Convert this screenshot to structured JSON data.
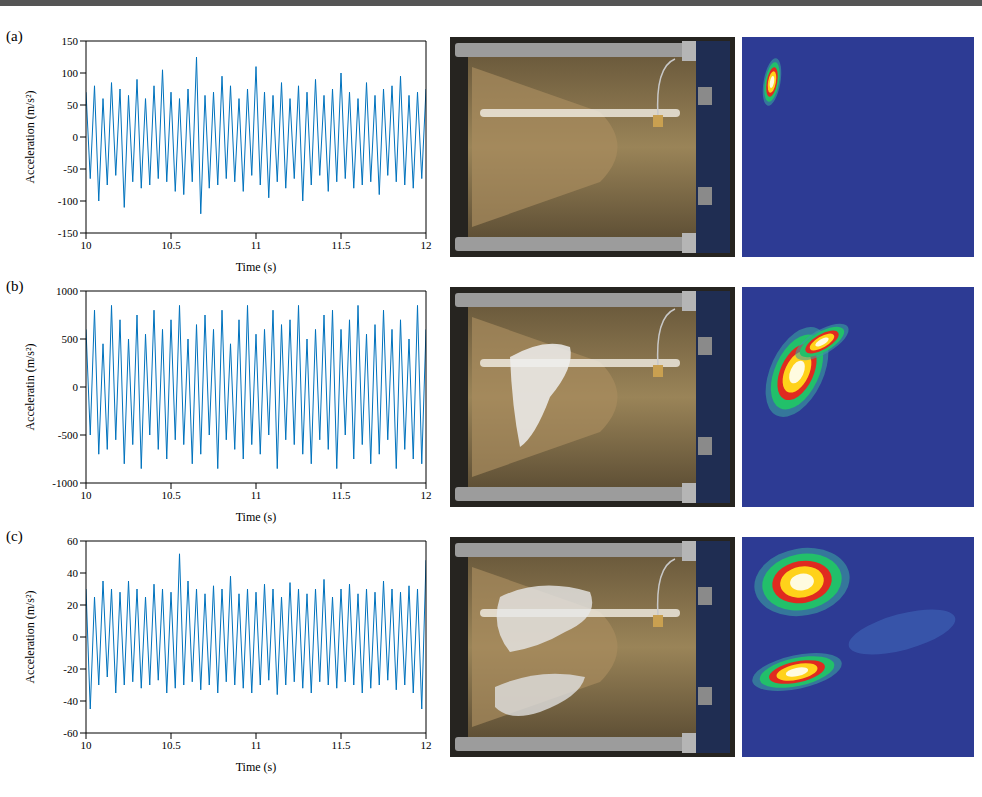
{
  "chart_data": [
    {
      "type": "line",
      "panel": "(a)",
      "x_label": "Time (s)",
      "y_label": "Acceleration (m/s²)",
      "xlim": [
        10,
        12
      ],
      "xticks": [
        10,
        10.5,
        11,
        11.5,
        12
      ],
      "ylim": [
        -150,
        150
      ],
      "yticks": [
        -150,
        -100,
        -50,
        0,
        50,
        100,
        150
      ],
      "grid": false,
      "color": "#0072bd",
      "x": [
        10,
        10.025,
        10.05,
        10.075,
        10.1,
        10.125,
        10.15,
        10.175,
        10.2,
        10.225,
        10.25,
        10.275,
        10.3,
        10.325,
        10.35,
        10.375,
        10.4,
        10.425,
        10.45,
        10.475,
        10.5,
        10.525,
        10.55,
        10.575,
        10.6,
        10.625,
        10.65,
        10.675,
        10.7,
        10.725,
        10.75,
        10.775,
        10.8,
        10.825,
        10.85,
        10.875,
        10.9,
        10.925,
        10.95,
        10.975,
        11,
        11.025,
        11.05,
        11.075,
        11.1,
        11.125,
        11.15,
        11.175,
        11.2,
        11.225,
        11.25,
        11.275,
        11.3,
        11.325,
        11.35,
        11.375,
        11.4,
        11.425,
        11.45,
        11.475,
        11.5,
        11.525,
        11.55,
        11.575,
        11.6,
        11.625,
        11.65,
        11.675,
        11.7,
        11.725,
        11.75,
        11.775,
        11.8,
        11.825,
        11.85,
        11.875,
        11.9,
        11.925,
        11.95,
        11.975,
        12
      ],
      "values": [
        70,
        -65,
        80,
        -100,
        60,
        -75,
        85,
        -60,
        75,
        -110,
        65,
        -70,
        90,
        -80,
        60,
        -75,
        80,
        -65,
        105,
        -70,
        70,
        -85,
        60,
        -90,
        75,
        -70,
        125,
        -120,
        65,
        -80,
        70,
        -75,
        95,
        -65,
        80,
        -70,
        60,
        -85,
        75,
        -60,
        110,
        -75,
        70,
        -95,
        65,
        -70,
        85,
        -80,
        60,
        -65,
        80,
        -100,
        70,
        -75,
        90,
        -60,
        65,
        -85,
        75,
        -70,
        100,
        -65,
        70,
        -80,
        60,
        -75,
        85,
        -70,
        65,
        -90,
        75,
        -60,
        80,
        -70,
        95,
        -75,
        65,
        -80,
        70,
        -65,
        75
      ]
    },
    {
      "type": "line",
      "panel": "(b)",
      "x_label": "Time (s)",
      "y_label": "Acceleratin (m/s²)",
      "xlim": [
        10,
        12
      ],
      "xticks": [
        10,
        10.5,
        11,
        11.5,
        12
      ],
      "ylim": [
        -1000,
        1000
      ],
      "yticks": [
        -1000,
        -500,
        0,
        500,
        1000
      ],
      "grid": false,
      "color": "#0072bd",
      "x": [
        10,
        10.025,
        10.05,
        10.075,
        10.1,
        10.125,
        10.15,
        10.175,
        10.2,
        10.225,
        10.25,
        10.275,
        10.3,
        10.325,
        10.35,
        10.375,
        10.4,
        10.425,
        10.45,
        10.475,
        10.5,
        10.525,
        10.55,
        10.575,
        10.6,
        10.625,
        10.65,
        10.675,
        10.7,
        10.725,
        10.75,
        10.775,
        10.8,
        10.825,
        10.85,
        10.875,
        10.9,
        10.925,
        10.95,
        10.975,
        11,
        11.025,
        11.05,
        11.075,
        11.1,
        11.125,
        11.15,
        11.175,
        11.2,
        11.225,
        11.25,
        11.275,
        11.3,
        11.325,
        11.35,
        11.375,
        11.4,
        11.425,
        11.45,
        11.475,
        11.5,
        11.525,
        11.55,
        11.575,
        11.6,
        11.625,
        11.65,
        11.675,
        11.7,
        11.725,
        11.75,
        11.775,
        11.8,
        11.825,
        11.85,
        11.875,
        11.9,
        11.925,
        11.95,
        11.975,
        12
      ],
      "values": [
        600,
        -500,
        800,
        -700,
        450,
        -650,
        850,
        -550,
        700,
        -800,
        500,
        -600,
        750,
        -850,
        550,
        -500,
        800,
        -650,
        600,
        -750,
        700,
        -550,
        850,
        -600,
        500,
        -800,
        650,
        -700,
        750,
        -500,
        600,
        -850,
        800,
        -550,
        450,
        -650,
        700,
        -750,
        850,
        -600,
        550,
        -700,
        600,
        -500,
        800,
        -850,
        650,
        -550,
        700,
        -600,
        850,
        -700,
        500,
        -800,
        600,
        -550,
        750,
        -650,
        800,
        -850,
        600,
        -500,
        700,
        -750,
        850,
        -600,
        550,
        -800,
        650,
        -700,
        800,
        -550,
        600,
        -850,
        700,
        -650,
        500,
        -750,
        850,
        -800,
        600
      ]
    },
    {
      "type": "line",
      "panel": "(c)",
      "x_label": "Time (s)",
      "y_label": "Acceleration (m/s²)",
      "xlim": [
        10,
        12
      ],
      "xticks": [
        10,
        10.5,
        11,
        11.5,
        12
      ],
      "ylim": [
        -60,
        60
      ],
      "yticks": [
        -60,
        -40,
        -20,
        0,
        20,
        40,
        60
      ],
      "grid": false,
      "color": "#0072bd",
      "x": [
        10,
        10.025,
        10.05,
        10.075,
        10.1,
        10.125,
        10.15,
        10.175,
        10.2,
        10.225,
        10.25,
        10.275,
        10.3,
        10.325,
        10.35,
        10.375,
        10.4,
        10.425,
        10.45,
        10.475,
        10.5,
        10.525,
        10.55,
        10.575,
        10.6,
        10.625,
        10.65,
        10.675,
        10.7,
        10.725,
        10.75,
        10.775,
        10.8,
        10.825,
        10.85,
        10.875,
        10.9,
        10.925,
        10.95,
        10.975,
        11,
        11.025,
        11.05,
        11.075,
        11.1,
        11.125,
        11.15,
        11.175,
        11.2,
        11.225,
        11.25,
        11.275,
        11.3,
        11.325,
        11.35,
        11.375,
        11.4,
        11.425,
        11.45,
        11.475,
        11.5,
        11.525,
        11.55,
        11.575,
        11.6,
        11.625,
        11.65,
        11.675,
        11.7,
        11.725,
        11.75,
        11.775,
        11.8,
        11.825,
        11.85,
        11.875,
        11.9,
        11.925,
        11.95,
        11.975,
        12
      ],
      "values": [
        30,
        -45,
        25,
        -30,
        35,
        -25,
        30,
        -35,
        28,
        -30,
        35,
        -28,
        30,
        -32,
        25,
        -30,
        33,
        -27,
        30,
        -35,
        28,
        -32,
        52,
        -30,
        35,
        -28,
        30,
        -33,
        27,
        -30,
        32,
        -35,
        30,
        -28,
        38,
        -30,
        27,
        -32,
        30,
        -35,
        28,
        -30,
        33,
        -27,
        30,
        -36,
        25,
        -30,
        34,
        -28,
        30,
        -32,
        27,
        -35,
        30,
        -28,
        36,
        -30,
        25,
        -32,
        30,
        -28,
        33,
        -30,
        27,
        -35,
        30,
        -32,
        28,
        -30,
        35,
        -27,
        30,
        -33,
        28,
        -30,
        32,
        -35,
        30,
        -45,
        48
      ]
    }
  ]
}
